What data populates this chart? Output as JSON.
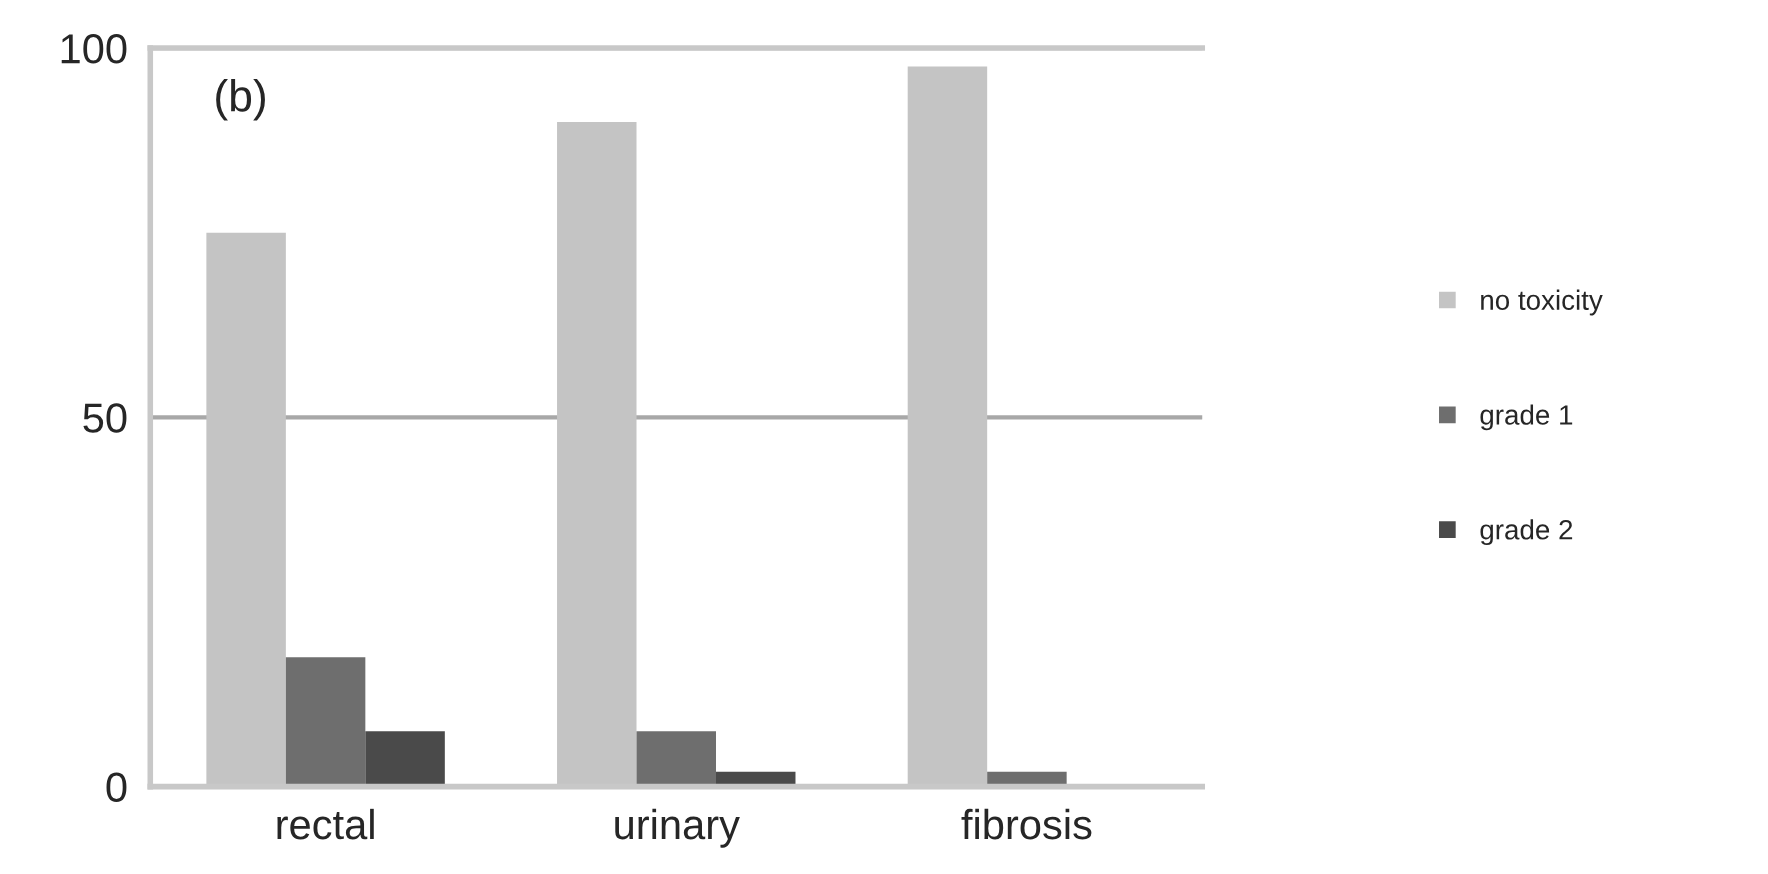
{
  "chart_data": {
    "type": "bar",
    "annotations": [
      "(b)"
    ],
    "categories": [
      "rectal",
      "urinary",
      "fibrosis"
    ],
    "series": [
      {
        "name": "no toxicity",
        "color": "#c4c4c4",
        "values": [
          75,
          90,
          97.5
        ]
      },
      {
        "name": "grade 1",
        "color": "#6e6e6e",
        "values": [
          17.5,
          7.5,
          2
        ]
      },
      {
        "name": "grade 2",
        "color": "#4a4a4a",
        "values": [
          7.5,
          2,
          0
        ]
      }
    ],
    "ylim": [
      0,
      100
    ],
    "yticks": [
      0,
      50,
      100
    ],
    "grid": "y",
    "legend": "right"
  }
}
